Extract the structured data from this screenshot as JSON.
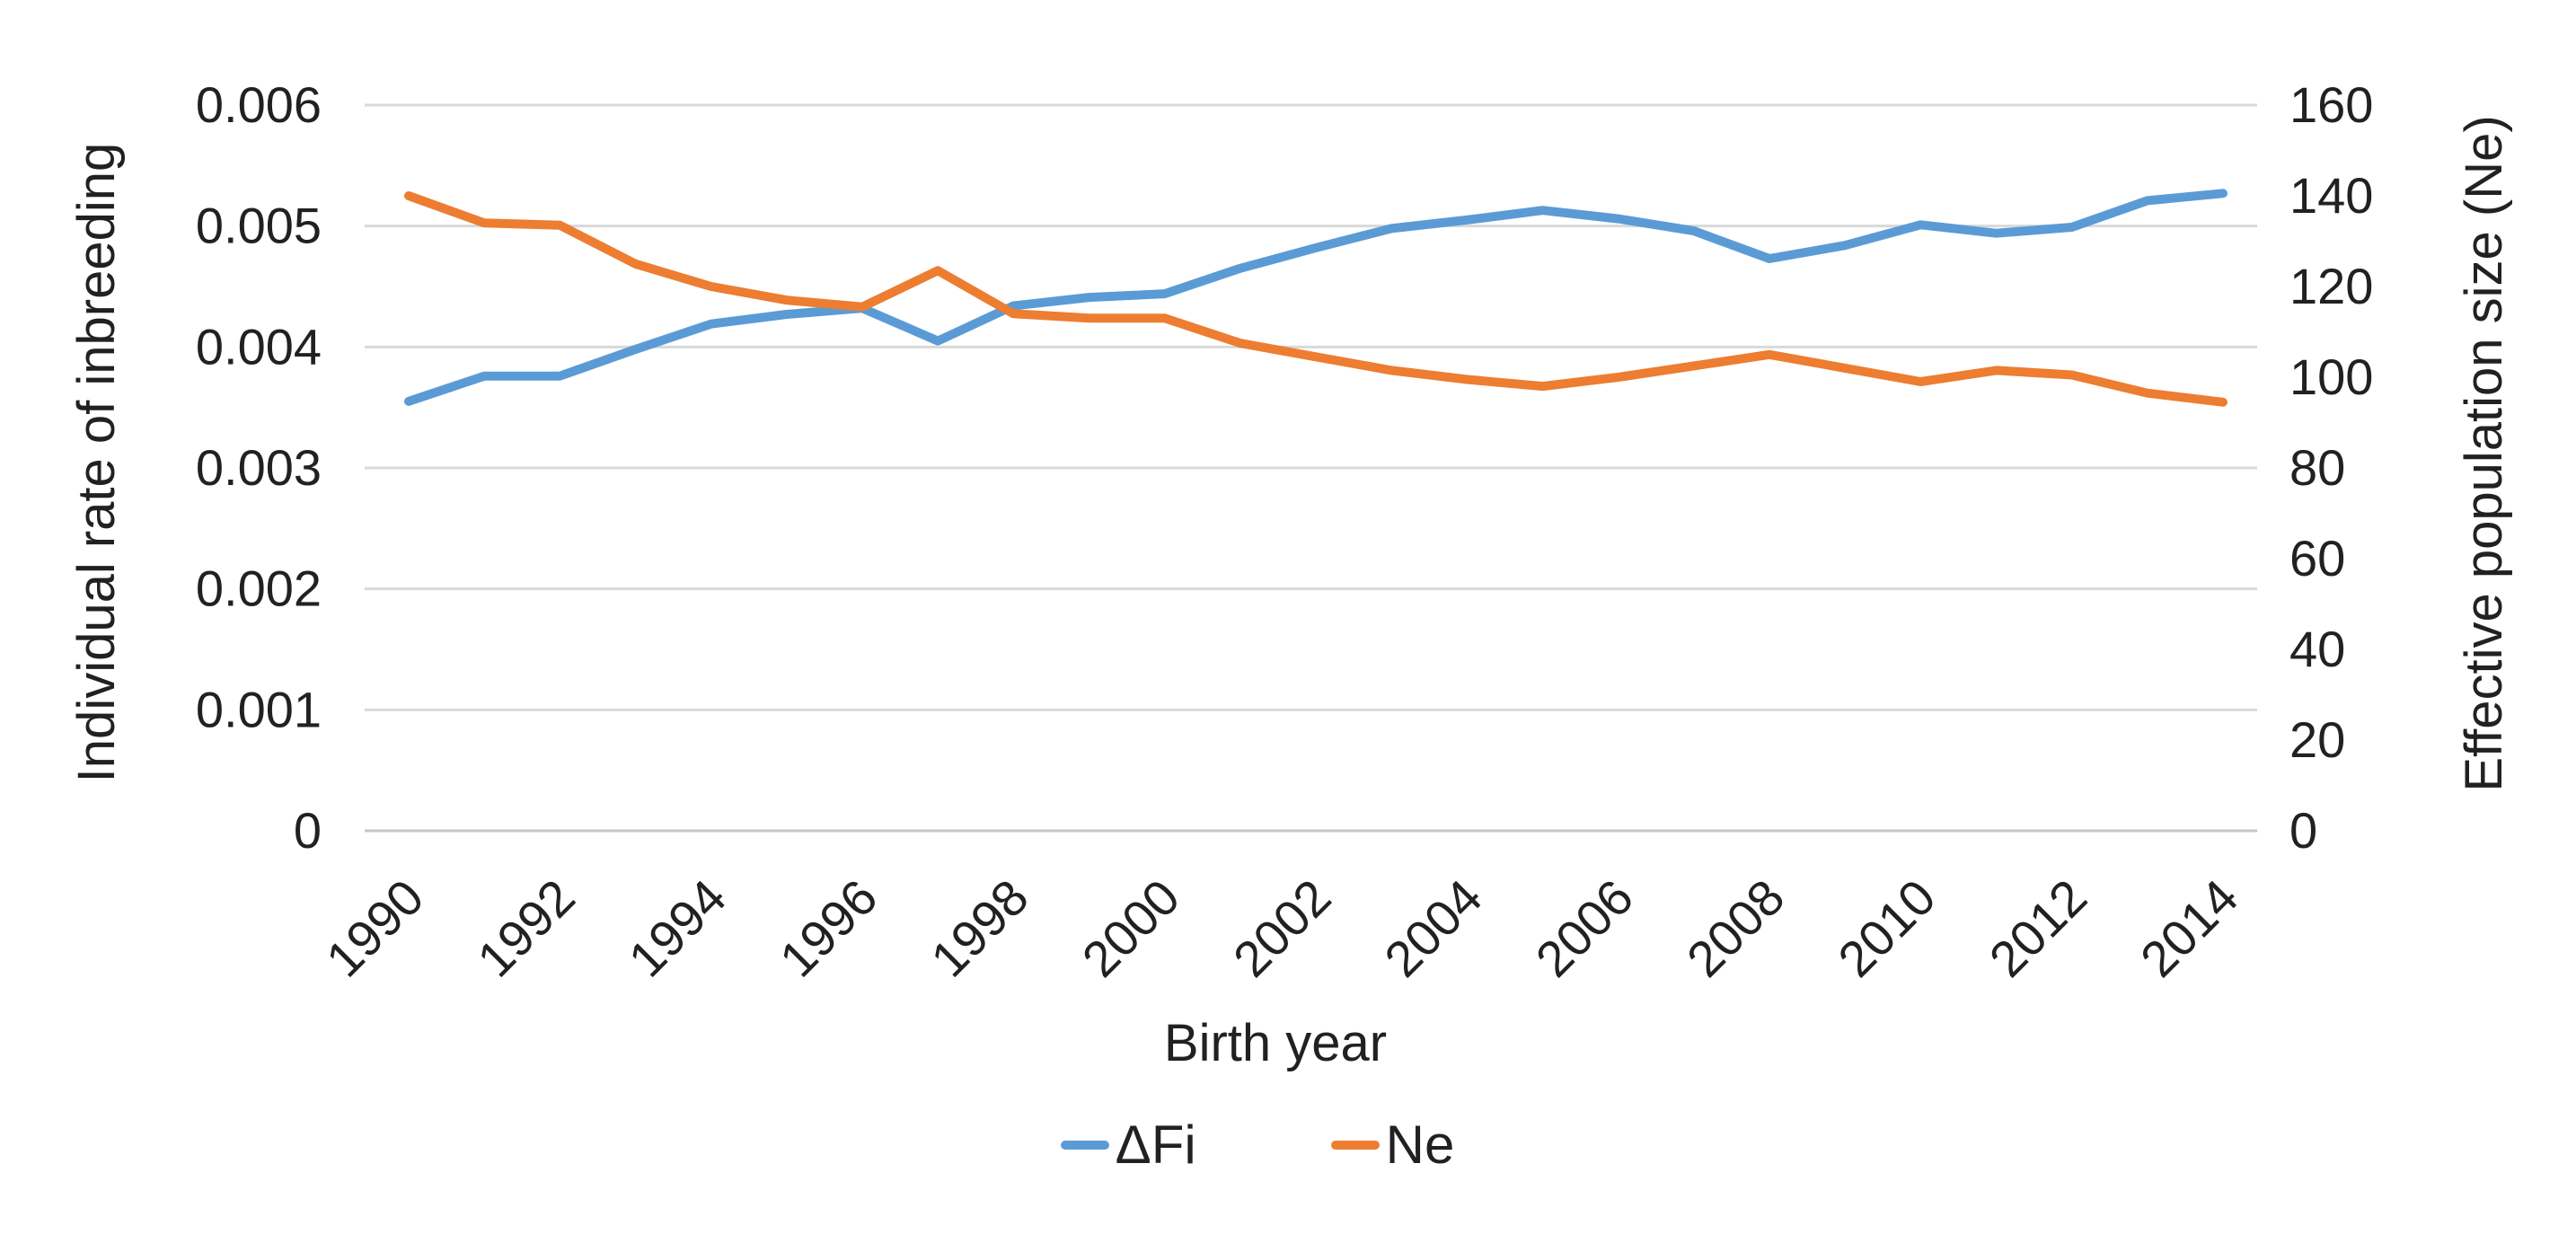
{
  "chart_data": {
    "type": "line",
    "title": "",
    "x_label": "Birth year",
    "x": [
      1990,
      1991,
      1992,
      1993,
      1994,
      1995,
      1996,
      1997,
      1998,
      1999,
      2000,
      2001,
      2002,
      2003,
      2004,
      2005,
      2006,
      2007,
      2008,
      2009,
      2010,
      2011,
      2012,
      2013,
      2014
    ],
    "x_axis_tick_labels": [
      "1990",
      "1992",
      "1994",
      "1996",
      "1998",
      "2000",
      "2002",
      "2004",
      "2006",
      "2008",
      "2010",
      "2012",
      "2014"
    ],
    "left_axis": {
      "title": "Individual rate of inbreeding",
      "min": 0,
      "max": 0.006,
      "step": 0.001,
      "tick_labels": [
        "0",
        "0.001",
        "0.002",
        "0.003",
        "0.004",
        "0.005",
        "0.006"
      ]
    },
    "right_axis": {
      "title": "Effective population size (Ne)",
      "min": 0,
      "max": 160,
      "step": 20,
      "tick_labels": [
        "0",
        "20",
        "40",
        "60",
        "80",
        "100",
        "120",
        "140",
        "160"
      ]
    },
    "grid": true,
    "legend_position": "bottom-center",
    "series": [
      {
        "name": "ΔFi",
        "axis": "left",
        "color": "#5B9BD5",
        "values": [
          0.00355,
          0.00376,
          0.00376,
          0.00398,
          0.00419,
          0.00427,
          0.00432,
          0.00405,
          0.00434,
          0.00441,
          0.00444,
          0.00465,
          0.00482,
          0.00498,
          0.00505,
          0.00513,
          0.00506,
          0.00496,
          0.00473,
          0.00484,
          0.00501,
          0.00494,
          0.00499,
          0.00521,
          0.00527
        ]
      },
      {
        "name": "Ne",
        "axis": "right",
        "color": "#ED7D31",
        "values": [
          140,
          134,
          133.5,
          125,
          120,
          117,
          115.5,
          123.5,
          114,
          113,
          113,
          107.5,
          104.5,
          101.5,
          99.5,
          98,
          100,
          102.5,
          105,
          102,
          99,
          101.5,
          100.5,
          96.5,
          94.5
        ]
      }
    ],
    "grid_color": "#D9D9D9",
    "axis_line_color": "#C6C6C6",
    "text_color": "#212121"
  }
}
